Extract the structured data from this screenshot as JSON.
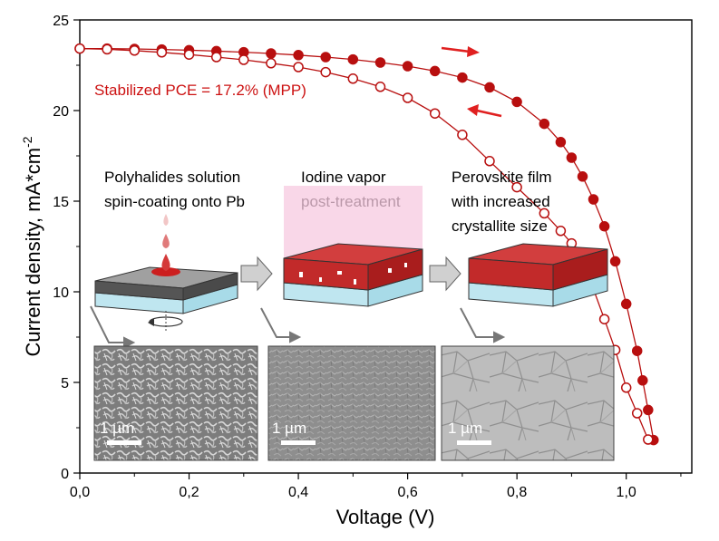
{
  "chart_data": {
    "type": "scatter",
    "xlabel": "Voltage (V)",
    "ylabel_main": "Current density, mA*cm",
    "ylabel_sup": "-2",
    "xlim": [
      0.0,
      1.12
    ],
    "ylim": [
      0,
      25
    ],
    "x_ticks": [
      0.0,
      0.2,
      0.4,
      0.6,
      0.8,
      1.0
    ],
    "x_tick_labels": [
      "0,0",
      "0,2",
      "0,4",
      "0,6",
      "0,8",
      "1,0"
    ],
    "y_ticks": [
      0,
      5,
      10,
      15,
      20,
      25
    ],
    "y_tick_labels": [
      "0",
      "5",
      "10",
      "15",
      "20",
      "25"
    ],
    "series": [
      {
        "marker": "filled",
        "color": "#b80f0f",
        "points": [
          [
            0.0,
            23.42
          ],
          [
            0.05,
            23.42
          ],
          [
            0.1,
            23.4
          ],
          [
            0.15,
            23.37
          ],
          [
            0.2,
            23.33
          ],
          [
            0.25,
            23.28
          ],
          [
            0.3,
            23.22
          ],
          [
            0.35,
            23.15
          ],
          [
            0.4,
            23.06
          ],
          [
            0.45,
            22.95
          ],
          [
            0.5,
            22.82
          ],
          [
            0.55,
            22.65
          ],
          [
            0.6,
            22.45
          ],
          [
            0.65,
            22.18
          ],
          [
            0.7,
            21.82
          ],
          [
            0.75,
            21.28
          ],
          [
            0.8,
            20.48
          ],
          [
            0.85,
            19.27
          ],
          [
            0.88,
            18.26
          ],
          [
            0.9,
            17.4
          ],
          [
            0.92,
            16.36
          ],
          [
            0.94,
            15.1
          ],
          [
            0.96,
            13.61
          ],
          [
            0.98,
            11.68
          ],
          [
            1.0,
            9.33
          ],
          [
            1.02,
            6.74
          ],
          [
            1.03,
            5.11
          ],
          [
            1.04,
            3.48
          ],
          [
            1.05,
            1.82
          ]
        ]
      },
      {
        "marker": "open",
        "color": "#b80f0f",
        "points": [
          [
            0.0,
            23.42
          ],
          [
            0.05,
            23.38
          ],
          [
            0.1,
            23.31
          ],
          [
            0.15,
            23.21
          ],
          [
            0.2,
            23.09
          ],
          [
            0.25,
            22.95
          ],
          [
            0.3,
            22.8
          ],
          [
            0.35,
            22.61
          ],
          [
            0.4,
            22.4
          ],
          [
            0.45,
            22.12
          ],
          [
            0.5,
            21.76
          ],
          [
            0.55,
            21.31
          ],
          [
            0.6,
            20.7
          ],
          [
            0.65,
            19.84
          ],
          [
            0.7,
            18.66
          ],
          [
            0.75,
            17.21
          ],
          [
            0.8,
            15.77
          ],
          [
            0.85,
            14.33
          ],
          [
            0.88,
            13.36
          ],
          [
            0.9,
            12.67
          ],
          [
            0.92,
            11.52
          ],
          [
            0.94,
            10.15
          ],
          [
            0.96,
            8.49
          ],
          [
            0.98,
            6.79
          ],
          [
            1.0,
            4.71
          ],
          [
            1.02,
            3.3
          ],
          [
            1.04,
            1.85
          ]
        ]
      }
    ],
    "annotations": {
      "pce": "Stabilized PCE = 17.2% (MPP)",
      "step1": [
        "Polyhalides solution",
        "spin-coating onto Pb"
      ],
      "step2": [
        "Iodine vapor",
        "post-treatment"
      ],
      "step3": [
        "Perovskite film",
        "with increased",
        "crystallite size"
      ],
      "scale_bar": "1 µm"
    },
    "colors": {
      "accent": "#cc1111",
      "data": "#b80f0f",
      "arrow": "#e02020"
    },
    "grid": false,
    "legend": "none"
  }
}
